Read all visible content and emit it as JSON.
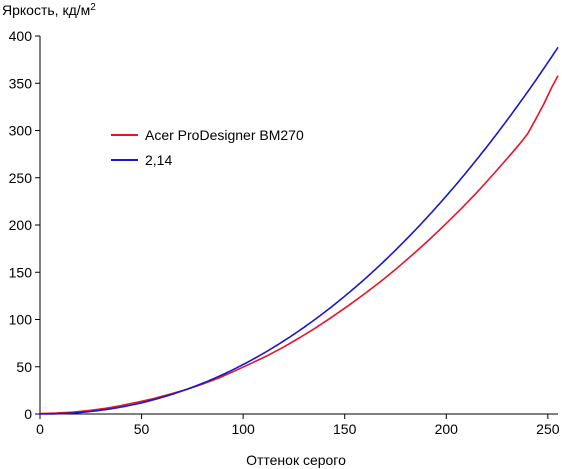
{
  "chart_data": {
    "type": "line",
    "ylabel": "Яркость, кд/м",
    "ylabel_sup": "2",
    "xlabel": "Оттенок серого",
    "xlim": [
      0,
      255
    ],
    "ylim": [
      0,
      400
    ],
    "x_ticks": [
      0,
      50,
      100,
      150,
      200,
      250
    ],
    "y_ticks": [
      0,
      50,
      100,
      150,
      200,
      250,
      300,
      350,
      400
    ],
    "grid": false,
    "legend_position": "upper-left inside",
    "series": [
      {
        "name": "Acer ProDesigner BM270",
        "color": "#e8132b",
        "points": [
          [
            0,
            0.5
          ],
          [
            8,
            0.9
          ],
          [
            16,
            1.9
          ],
          [
            24,
            3.6
          ],
          [
            32,
            5.9
          ],
          [
            40,
            9.0
          ],
          [
            48,
            12.6
          ],
          [
            56,
            16.4
          ],
          [
            64,
            20.9
          ],
          [
            72,
            25.9
          ],
          [
            80,
            31.6
          ],
          [
            88,
            38.1
          ],
          [
            96,
            45.7
          ],
          [
            104,
            53.7
          ],
          [
            112,
            61.8
          ],
          [
            120,
            71.0
          ],
          [
            128,
            80.9
          ],
          [
            136,
            91.6
          ],
          [
            144,
            103.0
          ],
          [
            152,
            115.0
          ],
          [
            160,
            127.5
          ],
          [
            168,
            140.7
          ],
          [
            176,
            154.8
          ],
          [
            184,
            169.7
          ],
          [
            192,
            185.2
          ],
          [
            200,
            201.7
          ],
          [
            208,
            218.6
          ],
          [
            216,
            236.6
          ],
          [
            224,
            255.7
          ],
          [
            232,
            275.3
          ],
          [
            236,
            285.5
          ],
          [
            240,
            296.3
          ],
          [
            244,
            312.0
          ],
          [
            248,
            328.0
          ],
          [
            252,
            346.0
          ],
          [
            255,
            358.0
          ]
        ]
      },
      {
        "name": "2,14",
        "color": "#1a17c9",
        "gamma": 2.14,
        "max_value": 388
      }
    ]
  }
}
